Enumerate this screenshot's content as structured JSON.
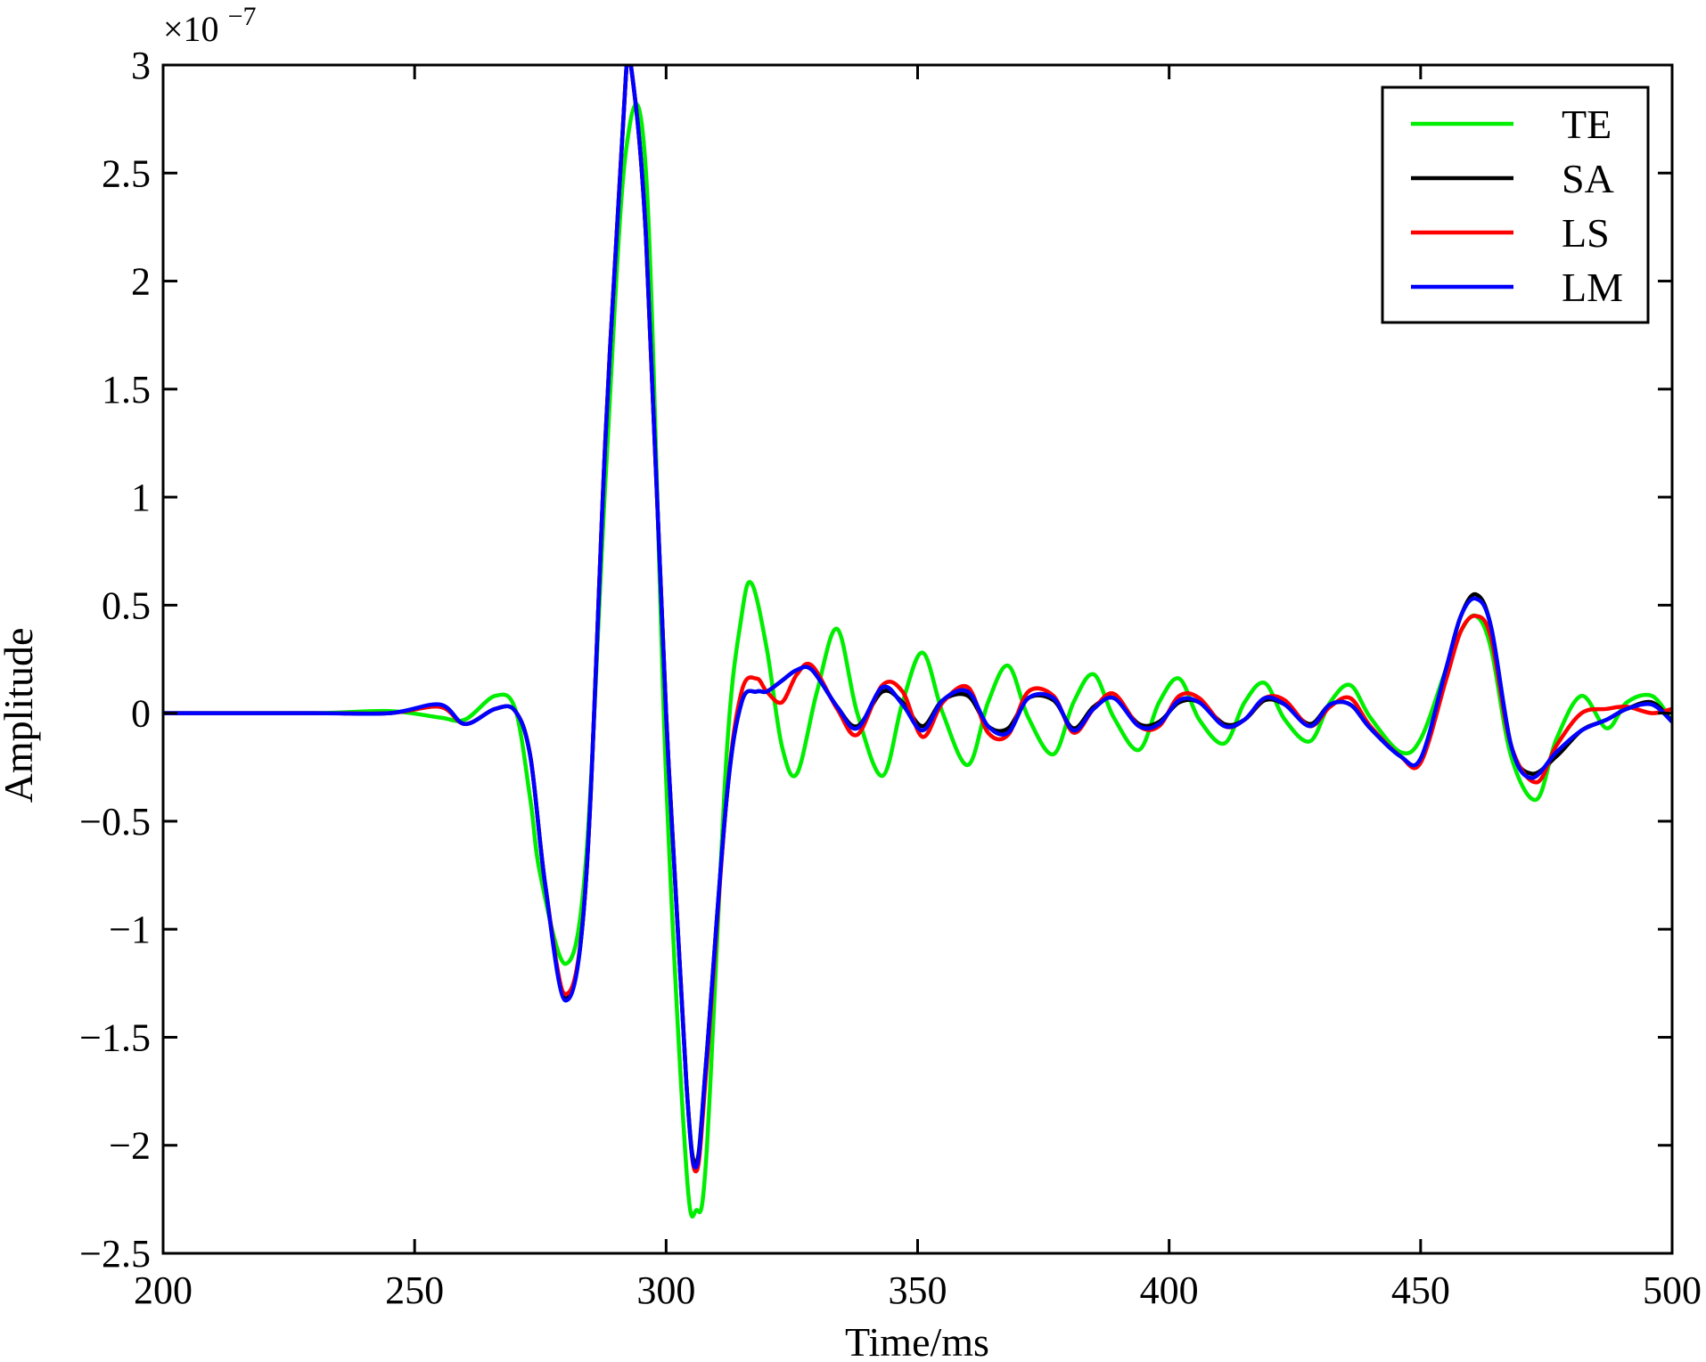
{
  "chart_data": {
    "type": "line",
    "title": "",
    "xlabel": "Time/ms",
    "ylabel": "Amplitude",
    "y_multiplier": {
      "base": "×10",
      "exponent": "−7"
    },
    "xlim": [
      200,
      500
    ],
    "ylim": [
      -2.5,
      3
    ],
    "xticks": [
      200,
      250,
      300,
      350,
      400,
      450,
      500
    ],
    "xtick_labels": [
      "200",
      "250",
      "300",
      "350",
      "400",
      "450",
      "500"
    ],
    "yticks": [
      -2.5,
      -2,
      -1.5,
      -1,
      -0.5,
      0,
      0.5,
      1,
      1.5,
      2,
      2.5,
      3
    ],
    "ytick_labels": [
      "−2.5",
      "−2",
      "−1.5",
      "−1",
      "−0.5",
      "0",
      "0.5",
      "1",
      "1.5",
      "2",
      "2.5",
      "3"
    ],
    "grid": false,
    "legend": {
      "position": "top-right",
      "entries": [
        "TE",
        "SA",
        "LS",
        "LM"
      ]
    },
    "series": [
      {
        "name": "TE",
        "color": "#00ee00",
        "x": [
          200,
          230,
          245,
          255,
          260,
          266,
          270,
          273,
          275,
          280,
          284,
          288,
          292,
          296,
          300,
          304,
          306,
          308,
          312,
          315,
          317,
          320,
          323,
          326,
          330,
          334,
          338,
          343,
          347,
          351,
          355,
          360,
          364,
          368,
          372,
          377,
          381,
          385,
          389,
          394,
          398,
          402,
          406,
          411,
          415,
          419,
          423,
          428,
          432,
          436,
          440,
          446,
          450,
          455,
          458,
          461,
          464,
          468,
          473,
          477,
          482,
          487,
          491,
          496,
          500
        ],
        "values": [
          0,
          0,
          0.01,
          -0.02,
          -0.03,
          0.08,
          0.02,
          -0.4,
          -0.75,
          -1.16,
          -0.7,
          1.1,
          2.6,
          2.5,
          -0.3,
          -2.1,
          -2.3,
          -2.05,
          -0.2,
          0.45,
          0.6,
          0.3,
          -0.15,
          -0.28,
          0.1,
          0.39,
          0.0,
          -0.29,
          0.05,
          0.28,
          0.0,
          -0.24,
          0.05,
          0.22,
          -0.02,
          -0.19,
          0.05,
          0.18,
          -0.02,
          -0.17,
          0.05,
          0.16,
          -0.03,
          -0.14,
          0.05,
          0.14,
          -0.03,
          -0.13,
          0.05,
          0.13,
          -0.02,
          -0.18,
          -0.12,
          0.2,
          0.38,
          0.45,
          0.3,
          -0.2,
          -0.4,
          -0.12,
          0.08,
          -0.07,
          0.05,
          0.08,
          -0.04
        ]
      },
      {
        "name": "SA",
        "color": "#000000",
        "x": [
          200,
          230,
          245,
          255,
          260,
          266,
          270,
          273,
          276,
          280,
          284,
          288,
          292,
          293,
          296,
          300,
          304,
          306,
          308,
          312,
          315,
          318,
          320,
          323,
          326,
          329,
          334,
          338,
          343,
          347,
          351,
          355,
          360,
          364,
          368,
          372,
          377,
          381,
          385,
          389,
          394,
          398,
          402,
          406,
          411,
          415,
          419,
          423,
          428,
          432,
          436,
          440,
          446,
          450,
          455,
          458,
          461,
          464,
          468,
          472,
          477,
          482,
          487,
          491,
          496,
          500
        ],
        "values": [
          0,
          0,
          0,
          0.03,
          -0.05,
          0.02,
          0.01,
          -0.2,
          -0.8,
          -1.32,
          -0.8,
          1.3,
          2.95,
          3.0,
          2.2,
          0.0,
          -1.7,
          -2.08,
          -1.6,
          -0.4,
          0.05,
          0.1,
          0.1,
          0.15,
          0.2,
          0.2,
          0.03,
          -0.06,
          0.1,
          0.05,
          -0.06,
          0.06,
          0.08,
          -0.06,
          -0.07,
          0.07,
          0.06,
          -0.07,
          0.03,
          0.07,
          -0.05,
          -0.04,
          0.05,
          0.05,
          -0.05,
          -0.03,
          0.06,
          0.04,
          -0.05,
          0.04,
          0.04,
          -0.07,
          -0.2,
          -0.22,
          0.2,
          0.45,
          0.55,
          0.4,
          -0.15,
          -0.28,
          -0.2,
          -0.08,
          -0.03,
          0.02,
          0.05,
          -0.04
        ]
      },
      {
        "name": "LS",
        "color": "#ff0000",
        "x": [
          200,
          230,
          245,
          255,
          260,
          266,
          270,
          273,
          276,
          280,
          284,
          288,
          292,
          293,
          296,
          300,
          304,
          306,
          308,
          312,
          315,
          318,
          320,
          323,
          326,
          329,
          334,
          338,
          343,
          347,
          351,
          355,
          360,
          364,
          368,
          372,
          377,
          381,
          385,
          389,
          394,
          398,
          402,
          406,
          411,
          415,
          419,
          423,
          428,
          432,
          436,
          440,
          446,
          450,
          455,
          458,
          461,
          464,
          468,
          473,
          477,
          482,
          487,
          491,
          496,
          500
        ],
        "values": [
          0,
          0,
          0,
          0.03,
          -0.05,
          0.02,
          0.01,
          -0.2,
          -0.8,
          -1.3,
          -0.8,
          1.3,
          2.95,
          3.0,
          2.2,
          0.0,
          -1.7,
          -2.12,
          -1.65,
          -0.4,
          0.1,
          0.16,
          0.1,
          0.05,
          0.18,
          0.22,
          0.02,
          -0.1,
          0.13,
          0.1,
          -0.11,
          0.05,
          0.12,
          -0.09,
          -0.1,
          0.1,
          0.08,
          -0.09,
          0.02,
          0.09,
          -0.06,
          -0.06,
          0.08,
          0.07,
          -0.06,
          -0.03,
          0.07,
          0.06,
          -0.06,
          0.03,
          0.07,
          -0.06,
          -0.2,
          -0.23,
          0.15,
          0.38,
          0.45,
          0.35,
          -0.15,
          -0.32,
          -0.15,
          0.0,
          0.02,
          0.03,
          0.0,
          0.02
        ]
      },
      {
        "name": "LM",
        "color": "#0000ff",
        "x": [
          200,
          230,
          245,
          255,
          260,
          266,
          270,
          273,
          276,
          280,
          284,
          288,
          292,
          293,
          296,
          300,
          304,
          306,
          308,
          312,
          315,
          318,
          320,
          323,
          326,
          329,
          334,
          338,
          343,
          347,
          351,
          355,
          360,
          364,
          368,
          372,
          377,
          381,
          385,
          389,
          394,
          398,
          402,
          406,
          411,
          415,
          419,
          423,
          428,
          432,
          436,
          440,
          446,
          450,
          455,
          458,
          461,
          464,
          468,
          472,
          477,
          482,
          487,
          491,
          496,
          500
        ],
        "values": [
          0,
          0,
          0,
          0.04,
          -0.05,
          0.02,
          0.01,
          -0.2,
          -0.8,
          -1.33,
          -0.8,
          1.3,
          2.95,
          3.0,
          2.2,
          0.0,
          -1.7,
          -2.1,
          -1.6,
          -0.4,
          0.05,
          0.1,
          0.1,
          0.15,
          0.2,
          0.2,
          0.03,
          -0.07,
          0.12,
          0.04,
          -0.08,
          0.06,
          0.1,
          -0.06,
          -0.09,
          0.07,
          0.07,
          -0.08,
          0.02,
          0.07,
          -0.06,
          -0.05,
          0.06,
          0.05,
          -0.06,
          -0.03,
          0.07,
          0.04,
          -0.06,
          0.04,
          0.04,
          -0.07,
          -0.2,
          -0.21,
          0.2,
          0.45,
          0.53,
          0.4,
          -0.15,
          -0.3,
          -0.18,
          -0.08,
          -0.03,
          0.02,
          0.04,
          -0.04
        ]
      }
    ]
  }
}
